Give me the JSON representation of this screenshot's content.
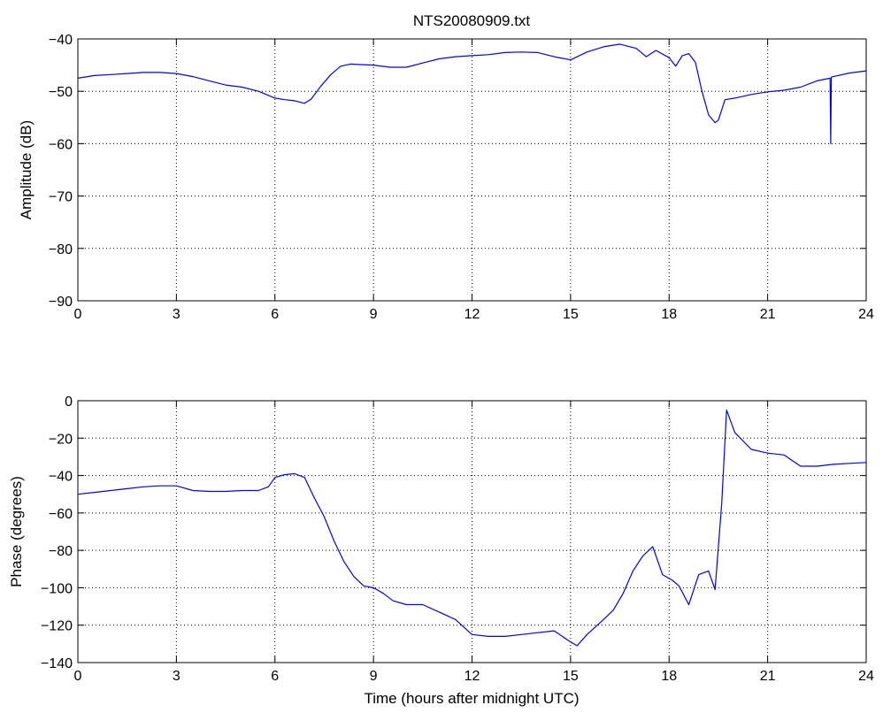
{
  "chart_data": [
    {
      "type": "line",
      "title": "NTS20080909.txt",
      "xlabel": "",
      "ylabel": "Amplitude (dB)",
      "xlim": [
        0,
        24
      ],
      "ylim": [
        -90,
        -40
      ],
      "xticks": [
        0,
        3,
        6,
        9,
        12,
        15,
        18,
        21,
        24
      ],
      "yticks": [
        -90,
        -80,
        -70,
        -60,
        -50,
        -40
      ],
      "grid": true,
      "line_color": "#0000ff",
      "series": [
        {
          "x": [
            0,
            0.5,
            1,
            1.5,
            2,
            2.5,
            3,
            3.5,
            4,
            4.5,
            5,
            5.5,
            6,
            6.3,
            6.6,
            6.9,
            7.1,
            7.4,
            7.7,
            8,
            8.3,
            8.6,
            9,
            9.5,
            10,
            10.5,
            11,
            11.5,
            12,
            12.5,
            13,
            13.5,
            14,
            14.5,
            15,
            15.5,
            16,
            16.5,
            17,
            17.3,
            17.6,
            18,
            18.2,
            18.4,
            18.6,
            18.8,
            19,
            19.2,
            19.4,
            19.5,
            19.7,
            20,
            20.5,
            21,
            21.5,
            22,
            22.5,
            22.9,
            22.92,
            22.94,
            23,
            23.5,
            24
          ],
          "y": [
            -47.5,
            -47,
            -46.8,
            -46.6,
            -46.4,
            -46.4,
            -46.6,
            -47.2,
            -48,
            -48.8,
            -49.2,
            -50,
            -51.3,
            -51.6,
            -51.8,
            -52.3,
            -51.5,
            -49,
            -46.8,
            -45.2,
            -44.8,
            -44.9,
            -45,
            -45.4,
            -45.4,
            -44.6,
            -43.8,
            -43.4,
            -43.2,
            -43,
            -42.6,
            -42.5,
            -42.6,
            -43.4,
            -44,
            -42.5,
            -41.5,
            -41,
            -41.8,
            -43.4,
            -42.2,
            -43.6,
            -45.2,
            -43.2,
            -42.8,
            -44.5,
            -50,
            -54.5,
            -56,
            -55.5,
            -51.6,
            -51.3,
            -50.6,
            -50.1,
            -49.8,
            -49.2,
            -48,
            -47.5,
            -60,
            -47.3,
            -47.2,
            -46.5,
            -46.1
          ]
        }
      ]
    },
    {
      "type": "line",
      "title": "",
      "xlabel": "Time (hours after midnight UTC)",
      "ylabel": "Phase (degrees)",
      "xlim": [
        0,
        24
      ],
      "ylim": [
        -140,
        0
      ],
      "xticks": [
        0,
        3,
        6,
        9,
        12,
        15,
        18,
        21,
        24
      ],
      "yticks": [
        -140,
        -120,
        -100,
        -80,
        -60,
        -40,
        -20,
        0
      ],
      "grid": true,
      "line_color": "#0000ff",
      "series": [
        {
          "x": [
            0,
            0.5,
            1,
            1.5,
            2,
            2.5,
            3,
            3.5,
            4,
            4.5,
            5,
            5.5,
            5.8,
            6,
            6.3,
            6.6,
            6.9,
            7.2,
            7.5,
            7.8,
            8.1,
            8.4,
            8.7,
            9,
            9.3,
            9.6,
            10,
            10.5,
            11,
            11.5,
            12,
            12.5,
            13,
            13.5,
            14,
            14.5,
            15,
            15.2,
            15.5,
            16,
            16.3,
            16.6,
            16.9,
            17.2,
            17.5,
            17.8,
            18.1,
            18.3,
            18.6,
            18.9,
            19.2,
            19.4,
            19.6,
            19.75,
            20,
            20.5,
            21,
            21.5,
            22,
            22.5,
            23,
            23.5,
            24
          ],
          "y": [
            -50,
            -49,
            -48,
            -47,
            -46,
            -45.5,
            -45.5,
            -48,
            -48.5,
            -48.5,
            -48,
            -48,
            -46,
            -41,
            -39.5,
            -39,
            -41,
            -52,
            -62,
            -75,
            -86,
            -94,
            -99,
            -100,
            -103,
            -107,
            -109,
            -109,
            -113,
            -117,
            -125,
            -126,
            -126,
            -125,
            -124,
            -123,
            -129,
            -131,
            -125,
            -117,
            -112,
            -103,
            -91,
            -83,
            -78,
            -93,
            -96,
            -99,
            -109,
            -93,
            -91,
            -101,
            -55,
            -5,
            -17,
            -26,
            -28,
            -29,
            -35,
            -35,
            -34,
            -33.5,
            -33
          ]
        }
      ]
    }
  ]
}
